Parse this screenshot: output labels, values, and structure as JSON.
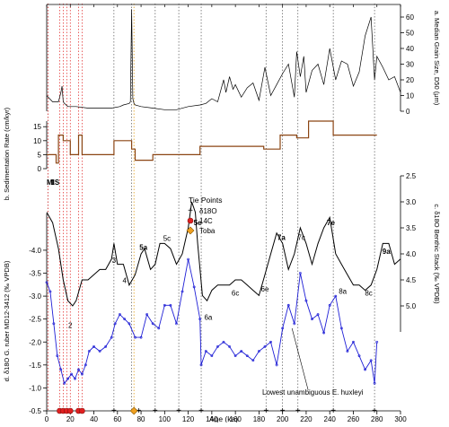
{
  "chart_data": {
    "type": "line",
    "x_axis": {
      "label": "Age (ka)",
      "range": [
        0,
        300
      ],
      "ticks": [
        0,
        20,
        40,
        60,
        80,
        100,
        120,
        140,
        160,
        180,
        200,
        220,
        240,
        260,
        280,
        300
      ]
    },
    "panels": [
      {
        "id": "a",
        "ylabel": "a. Median Grain Size, D50 (μm)",
        "ylim": [
          0,
          68
        ],
        "yticks": [
          0,
          10,
          20,
          30,
          40,
          50,
          60
        ],
        "series": [
          {
            "color": "#000000",
            "x": [
              0,
              5,
              10,
              12,
              13,
              14,
              15,
              18,
              25,
              35,
              45,
              55,
              62,
              65,
              70,
              71,
              72,
              73,
              74,
              75,
              80,
              90,
              100,
              110,
              120,
              130,
              135,
              140,
              145,
              150,
              152,
              155,
              158,
              160,
              165,
              170,
              175,
              180,
              185,
              190,
              195,
              200,
              205,
              210,
              212,
              215,
              218,
              220,
              225,
              230,
              235,
              240,
              245,
              250,
              255,
              260,
              265,
              270,
              275,
              278,
              280,
              285,
              290,
              295,
              300
            ],
            "y": [
              10,
              6,
              6,
              12,
              16,
              6,
              5,
              3,
              3,
              2,
              2,
              2,
              3,
              4,
              5,
              6,
              65,
              8,
              5,
              4,
              3,
              2,
              1,
              1,
              3,
              4,
              5,
              8,
              6,
              20,
              12,
              22,
              14,
              17,
              9,
              15,
              18,
              7,
              28,
              10,
              17,
              24,
              30,
              9,
              38,
              22,
              35,
              12,
              26,
              30,
              17,
              40,
              20,
              32,
              30,
              16,
              25,
              48,
              60,
              20,
              35,
              28,
              20,
              22,
              12
            ]
          }
        ]
      },
      {
        "id": "b",
        "ylabel": "b. Sedimentation Rate (cm/kyr)",
        "ylim": [
          0,
          17
        ],
        "yticks": [
          0,
          5,
          10,
          15
        ],
        "series": [
          {
            "color": "#8B4513",
            "x": [
              0,
              8,
              8,
              10,
              10,
              14,
              14,
              20,
              20,
              27,
              27,
              30,
              30,
              57,
              57,
              72,
              72,
              75,
              75,
              90,
              90,
              130,
              130,
              184,
              184,
              198,
              198,
              212,
              212,
              222,
              222,
              243,
              243,
              280
            ],
            "y": [
              5,
              5,
              2,
              2,
              12,
              12,
              10,
              10,
              5,
              5,
              12,
              12,
              5,
              5,
              10,
              10,
              7,
              7,
              3,
              3,
              5,
              5,
              8,
              8,
              7,
              7,
              12,
              12,
              11,
              11,
              17,
              17,
              12,
              12
            ]
          }
        ]
      },
      {
        "id": "c",
        "ylabel": "c. δ18O Benthic Stack (‰ VPDB)",
        "ylim": [
          5.5,
          2.5
        ],
        "yticks": [
          2.5,
          3.0,
          3.5,
          4.0,
          4.5,
          5.0
        ],
        "series": [
          {
            "color": "#000000",
            "x": [
              0,
              5,
              10,
              14,
              18,
              22,
              25,
              30,
              35,
              40,
              45,
              50,
              55,
              57,
              60,
              65,
              70,
              75,
              80,
              83,
              88,
              92,
              96,
              100,
              105,
              110,
              115,
              120,
              123,
              126,
              128,
              132,
              136,
              140,
              145,
              150,
              155,
              160,
              165,
              170,
              175,
              180,
              185,
              190,
              195,
              200,
              205,
              210,
              215,
              220,
              225,
              230,
              235,
              240,
              245,
              250,
              255,
              260,
              265,
              270,
              275,
              280,
              285,
              290,
              295,
              300
            ],
            "y": [
              3.2,
              3.4,
              3.9,
              4.5,
              4.9,
              5.0,
              4.9,
              4.5,
              4.5,
              4.4,
              4.3,
              4.3,
              4.1,
              3.8,
              4.2,
              4.2,
              4.6,
              4.4,
              4.0,
              3.9,
              4.3,
              4.2,
              3.8,
              3.8,
              3.9,
              4.2,
              4.0,
              3.5,
              3.0,
              3.2,
              3.8,
              4.8,
              4.9,
              4.7,
              4.6,
              4.6,
              4.6,
              4.5,
              4.5,
              4.6,
              4.7,
              4.8,
              4.4,
              4.0,
              3.6,
              3.8,
              4.3,
              4.0,
              3.5,
              3.8,
              4.2,
              3.8,
              3.5,
              3.3,
              4.0,
              4.2,
              4.4,
              4.6,
              4.6,
              4.7,
              4.6,
              4.3,
              3.8,
              3.8,
              4.2,
              4.1
            ]
          }
        ]
      },
      {
        "id": "d",
        "ylabel": "d. δ18O G. ruber MD12-3412 (‰ VPDB)",
        "ylim": [
          -0.5,
          -4.8
        ],
        "yticks": [
          -0.5,
          -1.0,
          -1.5,
          -2.0,
          -2.5,
          -3.0,
          -3.5,
          -4.0
        ],
        "series": [
          {
            "color": "#1f1fd6",
            "x": [
              0,
              3,
              6,
              9,
              12,
              15,
              18,
              21,
              24,
              27,
              30,
              33,
              36,
              40,
              45,
              50,
              55,
              58,
              62,
              66,
              70,
              75,
              80,
              85,
              90,
              95,
              100,
              105,
              110,
              115,
              120,
              125,
              130,
              131,
              135,
              140,
              145,
              150,
              155,
              160,
              165,
              170,
              175,
              180,
              185,
              190,
              195,
              200,
              205,
              210,
              215,
              220,
              225,
              230,
              235,
              240,
              245,
              250,
              255,
              260,
              265,
              270,
              275,
              278,
              280
            ],
            "y": [
              -3.3,
              -3.1,
              -2.4,
              -1.7,
              -1.4,
              -1.1,
              -1.2,
              -1.3,
              -1.2,
              -1.4,
              -1.3,
              -1.5,
              -1.8,
              -1.9,
              -1.8,
              -1.9,
              -2.1,
              -2.4,
              -2.6,
              -2.5,
              -2.4,
              -2.1,
              -2.1,
              -2.6,
              -2.4,
              -2.3,
              -2.8,
              -2.8,
              -2.4,
              -3.1,
              -3.8,
              -3.2,
              -2.5,
              -1.5,
              -1.8,
              -1.7,
              -1.9,
              -2.0,
              -1.9,
              -1.7,
              -1.8,
              -1.7,
              -1.6,
              -1.8,
              -1.9,
              -2.0,
              -1.5,
              -2.3,
              -2.8,
              -2.4,
              -3.5,
              -2.9,
              -2.5,
              -2.6,
              -2.2,
              -2.8,
              -3.0,
              -2.3,
              -1.8,
              -2.0,
              -1.7,
              -1.4,
              -1.6,
              -1.1,
              -2.0
            ]
          }
        ]
      }
    ],
    "mis_labels": [
      {
        "text": "MIS",
        "x": 0,
        "y": 2.67
      },
      {
        "text": "1",
        "x": 5,
        "y": 2.67
      },
      {
        "text": "2",
        "x": 20,
        "y": 5.42
      },
      {
        "text": "3",
        "x": 57,
        "y": 4.17
      },
      {
        "text": "4",
        "x": 66,
        "y": 4.56
      },
      {
        "text": "5a",
        "x": 82,
        "y": 3.92
      },
      {
        "text": "5c",
        "x": 102,
        "y": 3.75
      },
      {
        "text": "5e",
        "x": 128,
        "y": 3.45
      },
      {
        "text": "6a",
        "x": 137,
        "y": 5.27
      },
      {
        "text": "6c",
        "x": 160,
        "y": 4.8
      },
      {
        "text": "6e",
        "x": 185,
        "y": 4.72
      },
      {
        "text": "7a",
        "x": 199,
        "y": 3.73
      },
      {
        "text": "7c",
        "x": 216,
        "y": 3.73
      },
      {
        "text": "7e",
        "x": 241,
        "y": 3.45
      },
      {
        "text": "8a",
        "x": 251,
        "y": 4.77
      },
      {
        "text": "8c",
        "x": 273,
        "y": 4.8
      },
      {
        "text": "9a",
        "x": 288,
        "y": 4.0
      }
    ],
    "tie_points": {
      "d18O": [
        57,
        78,
        92,
        112,
        131,
        186,
        200,
        213,
        243,
        278
      ],
      "c14": [
        11,
        14,
        17,
        20,
        27,
        30
      ],
      "toba": [
        74
      ]
    },
    "legend": {
      "title": "Tie Points",
      "items": [
        {
          "label": "δ18O",
          "marker": "plus"
        },
        {
          "label": "14C",
          "marker": "red-circle"
        },
        {
          "label": "Toba",
          "marker": "orange-diamond"
        }
      ],
      "placement": "upper-middle"
    },
    "annotation": {
      "text": "Lowest unambiguous E. huxleyi",
      "x": 208,
      "y": -2.3
    }
  }
}
